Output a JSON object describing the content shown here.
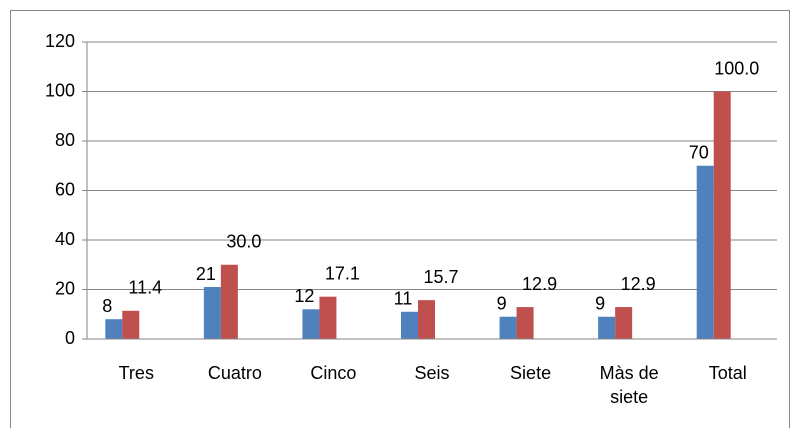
{
  "chart_data": {
    "type": "bar",
    "categories": [
      "Tres",
      "Cuatro",
      "Cinco",
      "Seis",
      "Siete",
      "Màs de siete",
      "Total"
    ],
    "series": [
      {
        "color": "#4f81bd",
        "values": [
          8,
          21,
          12,
          11,
          9,
          9,
          70
        ]
      },
      {
        "color": "#c0504d",
        "values": [
          11.4,
          30,
          17.1,
          15.7,
          12.9,
          12.9,
          100
        ],
        "value_labels": [
          "11.4",
          "30.0",
          "17.1",
          "15.7",
          "12.9",
          "12.9",
          "100.0"
        ]
      }
    ],
    "ylim": [
      0,
      120
    ],
    "yticks": [
      0,
      20,
      40,
      60,
      80,
      100,
      120
    ],
    "grid": true
  }
}
